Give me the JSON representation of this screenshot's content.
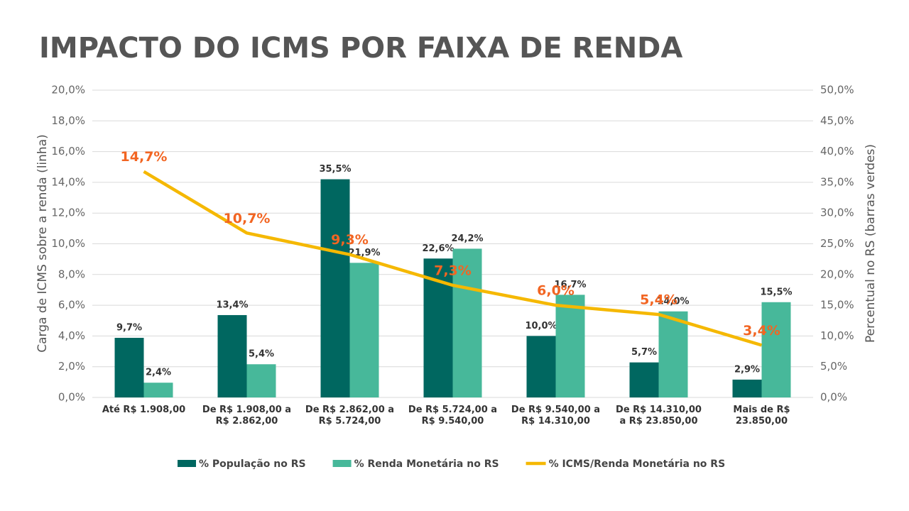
{
  "chart_data": {
    "type": "bar",
    "title": "IMPACTO DO ICMS POR FAIXA DE RENDA",
    "y_label": "Carga de ICMS sobre a renda (linha)",
    "y2_label": "Percentual no RS (barras verdes)",
    "categories": [
      "Até  R$ 1.908,00",
      "De R$ 1.908,00 a R$ 2.862,00",
      "De R$ 2.862,00 a R$ 5.724,00",
      "De R$ 5.724,00 a R$ 9.540,00",
      "De R$ 9.540,00 a R$ 14.310,00",
      "De R$ 14.310,00 a R$ 23.850,00",
      "Mais de R$ 23.850,00"
    ],
    "ylim": [
      0,
      20
    ],
    "yticks": [
      {
        "value": 0,
        "label": "0,0%"
      },
      {
        "value": 2,
        "label": "2,0%"
      },
      {
        "value": 4,
        "label": "4,0%"
      },
      {
        "value": 6,
        "label": "6,0%"
      },
      {
        "value": 8,
        "label": "8,0%"
      },
      {
        "value": 10,
        "label": "10,0%"
      },
      {
        "value": 12,
        "label": "12,0%"
      },
      {
        "value": 14,
        "label": "14,0%"
      },
      {
        "value": 16,
        "label": "16,0%"
      },
      {
        "value": 18,
        "label": "18,0%"
      },
      {
        "value": 20,
        "label": "20,0%"
      }
    ],
    "y2lim": [
      0,
      50
    ],
    "y2ticks": [
      {
        "value": 0,
        "label": "0,0%"
      },
      {
        "value": 5,
        "label": "5,0%"
      },
      {
        "value": 10,
        "label": "10,0%"
      },
      {
        "value": 15,
        "label": "15,0%"
      },
      {
        "value": 20,
        "label": "20,0%"
      },
      {
        "value": 25,
        "label": "25,0%"
      },
      {
        "value": 30,
        "label": "30,0%"
      },
      {
        "value": 35,
        "label": "35,0%"
      },
      {
        "value": 40,
        "label": "40,0%"
      },
      {
        "value": 45,
        "label": "45,0%"
      },
      {
        "value": 50,
        "label": "50,0%"
      }
    ],
    "grid": true,
    "series": [
      {
        "name": "% População no RS",
        "type": "bar",
        "axis": "y2",
        "color": "#006760",
        "values": [
          9.7,
          13.4,
          35.5,
          22.6,
          10.0,
          5.7,
          2.9
        ],
        "value_labels": [
          "9,7%",
          "13,4%",
          "35,5%",
          "22,6%",
          "10,0%",
          "5,7%",
          "2,9%"
        ]
      },
      {
        "name": "% Renda Monetária no RS",
        "type": "bar",
        "axis": "y2",
        "color": "#47b89a",
        "values": [
          2.4,
          5.4,
          21.9,
          24.2,
          16.7,
          14.0,
          15.5
        ],
        "value_labels": [
          "2,4%",
          "5,4%",
          "21,9%",
          "24,2%",
          "16,7%",
          "14,0%",
          "15,5%"
        ]
      },
      {
        "name": "% ICMS/Renda Monetária no RS",
        "type": "line",
        "axis": "y",
        "color": "#f5b800",
        "label_color": "#f26522",
        "values": [
          14.7,
          10.7,
          9.3,
          7.3,
          6.0,
          5.4,
          3.4
        ],
        "value_labels": [
          "14,7%",
          "10,7%",
          "9,3%",
          "7,3%",
          "6,0%",
          "5,4%",
          "3,4%"
        ]
      }
    ]
  }
}
